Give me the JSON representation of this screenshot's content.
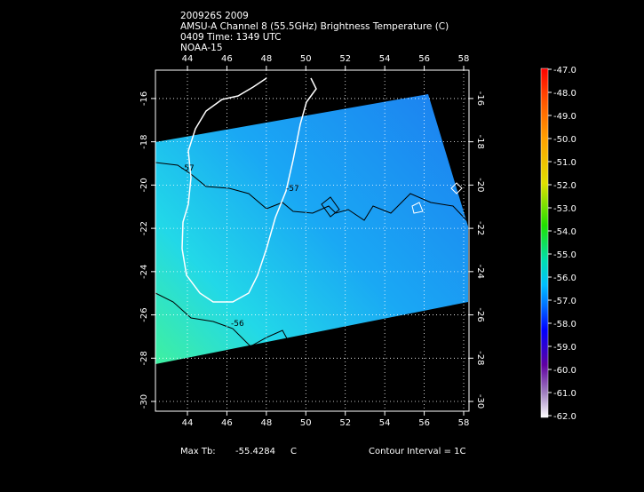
{
  "header": {
    "lines": [
      "200926S 2009",
      "AMSU-A Channel 8 (55.5GHz) Brightness Temperature (C)",
      "0409 Time: 1349 UTC",
      "NOAA-15"
    ]
  },
  "map": {
    "xlim": [
      42.38,
      58.27
    ],
    "ylim": [
      -30.45,
      -14.69
    ],
    "xticks": [
      44,
      46,
      48,
      50,
      52,
      54,
      56,
      58
    ],
    "yticks": [
      -16,
      -18,
      -20,
      -22,
      -24,
      -26,
      -28,
      -30
    ],
    "contour_labels": [
      "-57",
      "-57",
      "-56"
    ]
  },
  "colorbar": {
    "ticks": [
      {
        "value": -47,
        "label": "-47.0"
      },
      {
        "value": -48,
        "label": "-48.0"
      },
      {
        "value": -49,
        "label": "-49.0"
      },
      {
        "value": -50,
        "label": "-50.0"
      },
      {
        "value": -51,
        "label": "-51.0"
      },
      {
        "value": -52,
        "label": "-52.0"
      },
      {
        "value": -53,
        "label": "-53.0"
      },
      {
        "value": -54,
        "label": "-54.0"
      },
      {
        "value": -55,
        "label": "-55.0"
      },
      {
        "value": -56,
        "label": "-56.0"
      },
      {
        "value": -57,
        "label": "-57.0"
      },
      {
        "value": -58,
        "label": "-58.0"
      },
      {
        "value": -59,
        "label": "-59.0"
      },
      {
        "value": -60,
        "label": "-60.0"
      },
      {
        "value": -61,
        "label": "-61.0"
      },
      {
        "value": -62,
        "label": "-62.0"
      }
    ]
  },
  "footer": {
    "max_label": "Max Tb:",
    "max_value": "-55.4284",
    "max_unit": "C",
    "contour_interval": "Contour Interval = 1C"
  }
}
